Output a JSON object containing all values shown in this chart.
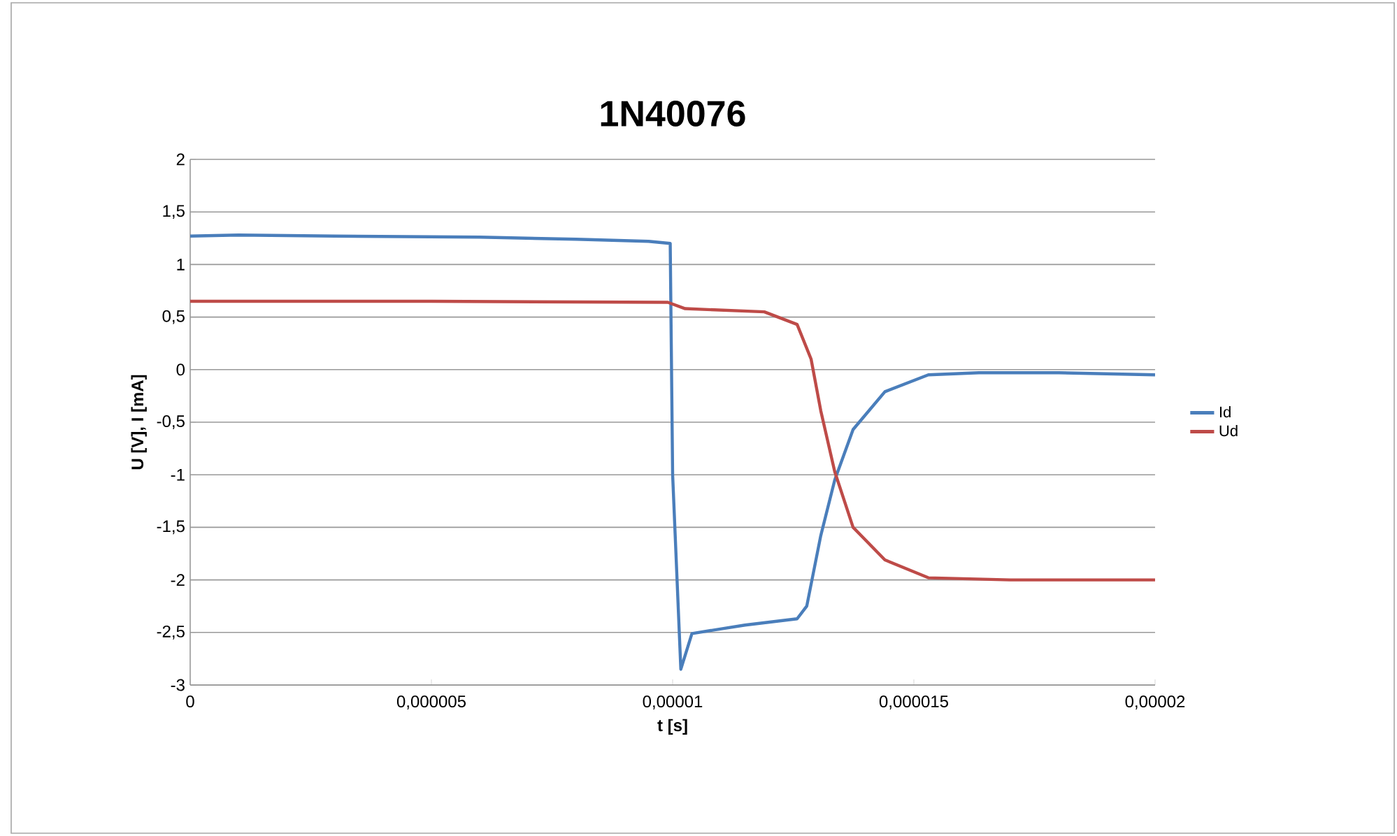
{
  "chart_data": {
    "type": "line",
    "title": "1N40076",
    "xlabel": "t [s]",
    "ylabel": "U [V], I [mA]",
    "xlim": [
      0,
      2e-05
    ],
    "ylim": [
      -3,
      2
    ],
    "xticks": [
      0,
      {
        "value": 5e-06,
        "label": "0,000005"
      },
      {
        "value": 1e-05,
        "label": "0,00001"
      },
      {
        "value": 1.5e-05,
        "label": "0,000015"
      },
      {
        "value": 2e-05,
        "label": "0,00002"
      }
    ],
    "yticks": [
      -3,
      {
        "value": -2.5,
        "label": "-2,5"
      },
      -2,
      {
        "value": -1.5,
        "label": "-1,5"
      },
      -1,
      {
        "value": -0.5,
        "label": "-0,5"
      },
      0,
      {
        "value": 0.5,
        "label": "0,5"
      },
      1,
      {
        "value": 1.5,
        "label": "1,5"
      },
      2
    ],
    "grid": "y",
    "legend": "right",
    "marker": "none",
    "line_style": "solid",
    "series": [
      {
        "name": "Id",
        "color": "#4a7ebb",
        "x": [
          0,
          1e-06,
          3e-06,
          6e-06,
          8e-06,
          9.5e-06,
          9.95e-06,
          1e-05,
          1.017e-05,
          1.04e-05,
          1.15e-05,
          1.258e-05,
          1.278e-05,
          1.307e-05,
          1.336e-05,
          1.374e-05,
          1.44e-05,
          1.53e-05,
          1.635e-05,
          1.8e-05,
          2e-05
        ],
        "values": [
          1.27,
          1.28,
          1.27,
          1.26,
          1.24,
          1.22,
          1.2,
          -1.0,
          -2.85,
          -2.51,
          -2.43,
          -2.37,
          -2.25,
          -1.58,
          -1.05,
          -0.57,
          -0.21,
          -0.05,
          -0.03,
          -0.03,
          -0.05
        ]
      },
      {
        "name": "Ud",
        "color": "#be4b48",
        "x": [
          0,
          5e-06,
          9.9e-06,
          1.026e-05,
          1.19e-05,
          1.258e-05,
          1.287e-05,
          1.307e-05,
          1.336e-05,
          1.374e-05,
          1.44e-05,
          1.53e-05,
          1.7e-05,
          2e-05
        ],
        "values": [
          0.65,
          0.65,
          0.64,
          0.58,
          0.55,
          0.43,
          0.1,
          -0.39,
          -0.97,
          -1.5,
          -1.81,
          -1.98,
          -2.0,
          -2.0
        ]
      }
    ]
  }
}
